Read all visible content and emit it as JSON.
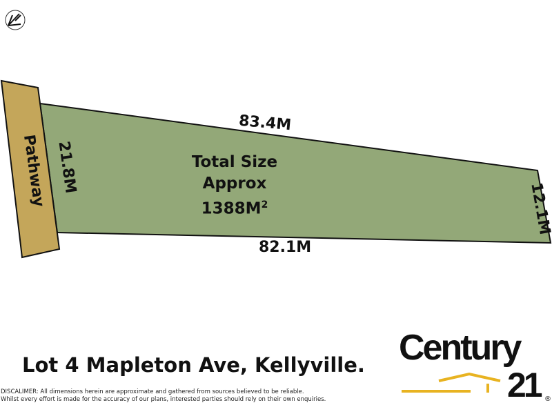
{
  "colors": {
    "lot": "#93a878",
    "pathway": "#c4a65a",
    "brand_accent": "#e8b321"
  },
  "plan": {
    "pathway_label": "Pathway",
    "top_boundary": "83.4M",
    "bottom_boundary": "82.1M",
    "left_boundary": "21.8M",
    "right_boundary": "12.1M",
    "size_line1": "Total Size",
    "size_line2": "Approx",
    "size_value": "1388M",
    "size_unit_sup": "2"
  },
  "address": "Lot 4 Mapleton Ave, Kellyville.",
  "disclaimer": {
    "line1": "DISCALIMER:  All dimensions herein are approximate and gathered from sources believed to be reliable.",
    "line2": "Whilst every effort is made for the accuracy of our plans, interested parties should rely on their own enquiries."
  },
  "logo": {
    "brand": "Century",
    "number": "21",
    "registered": "®"
  }
}
